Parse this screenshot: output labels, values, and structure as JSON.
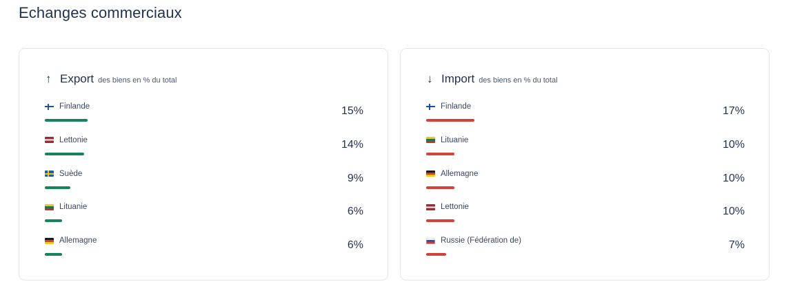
{
  "section": {
    "title": "Echanges commerciaux"
  },
  "colors": {
    "export_bar": "#16845a",
    "import_bar": "#d4403a"
  },
  "export": {
    "arrow_icon": "arrow-up-icon",
    "title": "Export",
    "subtitle": "des biens en % du total",
    "items": [
      {
        "country": "Finlande",
        "flag": "flag-fi",
        "value": 15,
        "label": "15%"
      },
      {
        "country": "Lettonie",
        "flag": "flag-lv",
        "value": 14,
        "label": "14%"
      },
      {
        "country": "Suède",
        "flag": "flag-se",
        "value": 9,
        "label": "9%"
      },
      {
        "country": "Lituanie",
        "flag": "flag-lt",
        "value": 6,
        "label": "6%"
      },
      {
        "country": "Allemagne",
        "flag": "flag-de",
        "value": 6,
        "label": "6%"
      }
    ]
  },
  "import": {
    "arrow_icon": "arrow-down-icon",
    "title": "Import",
    "subtitle": "des biens en % du total",
    "items": [
      {
        "country": "Finlande",
        "flag": "flag-fi",
        "value": 17,
        "label": "17%"
      },
      {
        "country": "Lituanie",
        "flag": "flag-lt",
        "value": 10,
        "label": "10%"
      },
      {
        "country": "Allemagne",
        "flag": "flag-de",
        "value": 10,
        "label": "10%"
      },
      {
        "country": "Lettonie",
        "flag": "flag-lv",
        "value": 10,
        "label": "10%"
      },
      {
        "country": "Russie (Fédération de)",
        "flag": "flag-ru",
        "value": 7,
        "label": "7%"
      }
    ]
  }
}
